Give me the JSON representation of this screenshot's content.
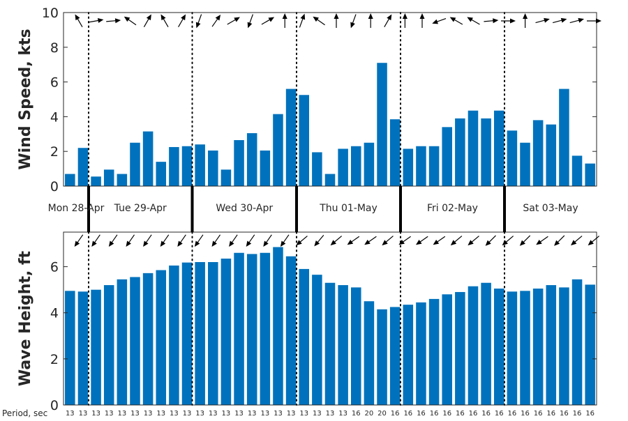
{
  "colors": {
    "bar": "#0072BD",
    "axis": "#262626",
    "arrow": "#000000"
  },
  "chart_data": [
    {
      "type": "bar",
      "name": "wind-speed",
      "ylabel": "Wind Speed, kts",
      "ylim": [
        0,
        10
      ],
      "yticks": [
        0,
        2,
        4,
        6,
        8,
        10
      ],
      "values": [
        0.7,
        2.2,
        0.55,
        0.95,
        0.7,
        2.5,
        3.15,
        1.4,
        2.25,
        2.3,
        2.4,
        2.05,
        0.95,
        2.65,
        3.05,
        2.05,
        4.15,
        5.6,
        5.25,
        1.95,
        0.7,
        2.15,
        2.3,
        2.5,
        7.1,
        3.85,
        2.15,
        2.3,
        2.3,
        3.4,
        3.9,
        4.35,
        3.9,
        4.35,
        3.2,
        2.5,
        3.8,
        3.55,
        5.6,
        1.75,
        1.3
      ],
      "direction_arrows": [
        330,
        80,
        85,
        305,
        30,
        330,
        30,
        200,
        35,
        60,
        200,
        60,
        0,
        20,
        305,
        0,
        200,
        0,
        30,
        0,
        0,
        250,
        300,
        300,
        85,
        90,
        0,
        75,
        75,
        75,
        90
      ],
      "grid": false
    },
    {
      "type": "bar",
      "name": "wave-height",
      "ylabel": "Wave Height, ft",
      "ylim": [
        0,
        7.5
      ],
      "yticks": [
        0,
        2,
        4,
        6
      ],
      "values": [
        4.95,
        4.92,
        5.0,
        5.2,
        5.45,
        5.55,
        5.72,
        5.85,
        6.05,
        6.18,
        6.2,
        6.2,
        6.35,
        6.6,
        6.55,
        6.6,
        6.85,
        6.45,
        5.9,
        5.65,
        5.3,
        5.2,
        5.1,
        4.5,
        4.15,
        4.25,
        4.35,
        4.45,
        4.6,
        4.8,
        4.9,
        5.15,
        5.3,
        5.05,
        4.92,
        4.95,
        5.05,
        5.2,
        5.1,
        5.45,
        5.22
      ],
      "direction_arrows": [
        215,
        215,
        215,
        215,
        215,
        215,
        215,
        215,
        215,
        215,
        215,
        215,
        215,
        230,
        220,
        230,
        235,
        235,
        230,
        235,
        235,
        235,
        230,
        230,
        225,
        230,
        225,
        235,
        225,
        230,
        230
      ],
      "grid": false
    }
  ],
  "days": [
    "Mon 28-Apr",
    "Tue 29-Apr",
    "Wed 30-Apr",
    "Thu 01-May",
    "Fri 02-May",
    "Sat 03-May"
  ],
  "period": {
    "label": "Period, sec",
    "values": [
      "13",
      "13",
      "13",
      "13",
      "13",
      "13",
      "13",
      "13",
      "13",
      "13",
      "13",
      "13",
      "13",
      "13",
      "13",
      "13",
      "13",
      "13",
      "13",
      "13",
      "13",
      "13",
      "16",
      "20",
      "20",
      "16",
      "16",
      "16",
      "16",
      "16",
      "16",
      "16",
      "16",
      "16",
      "16",
      "16",
      "16",
      "16",
      "16",
      "16",
      "16"
    ]
  }
}
